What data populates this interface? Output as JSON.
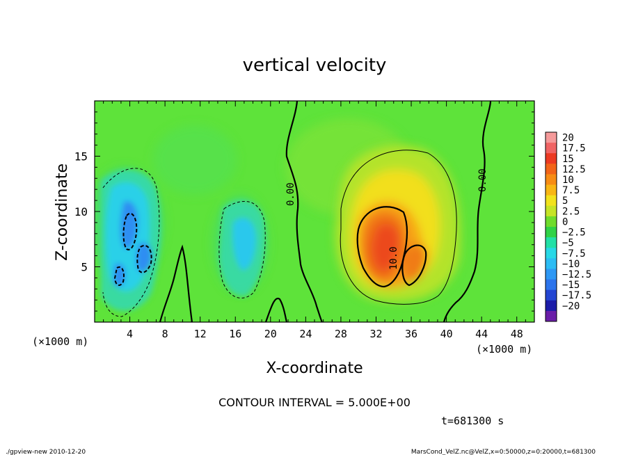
{
  "chart_data": {
    "type": "heatmap",
    "title": "vertical velocity",
    "xlabel": "X-coordinate",
    "ylabel": "Z-coordinate",
    "x_unit": "(×1000 m)",
    "xlim": [
      0,
      50
    ],
    "ylim": [
      0,
      20
    ],
    "x_ticks": [
      4,
      8,
      12,
      16,
      20,
      24,
      28,
      32,
      36,
      40,
      44,
      48
    ],
    "y_ticks": [
      5,
      10,
      15
    ],
    "colorbar": {
      "labels": [
        "20",
        "17.5",
        "15",
        "12.5",
        "10",
        "7.5",
        "5",
        "2.5",
        "0",
        "−2.5",
        "−5",
        "−7.5",
        "−10",
        "−12.5",
        "−15",
        "−17.5",
        "−20"
      ],
      "colors": [
        "#f59a9a",
        "#f06464",
        "#ec3a22",
        "#f26418",
        "#f78c14",
        "#f8b614",
        "#f2e21c",
        "#c6e426",
        "#6fdc2c",
        "#30d246",
        "#22e0a6",
        "#28d8e6",
        "#2cbcf4",
        "#2e98f4",
        "#2c74ec",
        "#2446d2",
        "#1c1ca8",
        "#6a1ea8"
      ]
    },
    "field_features": [
      {
        "kind": "updraft",
        "x": 33,
        "z": 8,
        "peak": 12.5
      },
      {
        "kind": "updraft",
        "x": 36.5,
        "z": 5.5,
        "peak": 10
      },
      {
        "kind": "downdraft",
        "x": 4.5,
        "z": 8,
        "peak": -10
      },
      {
        "kind": "downdraft",
        "x": 6,
        "z": 5.5,
        "peak": -10
      },
      {
        "kind": "downdraft",
        "x": 3,
        "z": 4,
        "peak": -10
      },
      {
        "kind": "downdraft",
        "x": 17.5,
        "z": 7.5,
        "peak": -6
      }
    ],
    "contour_labels": [
      "0.00",
      "0.00",
      "10.0"
    ],
    "contour_interval": "CONTOUR INTERVAL = 5.000E+00",
    "time": "t=681300 s"
  },
  "footer": {
    "left": "./gpview-new  2010-12-20",
    "right": "MarsCond_VelZ.nc@VelZ,x=0:50000,z=0:20000,t=681300"
  },
  "colors": {
    "background_green": "#5ee33a",
    "text": "#000000"
  }
}
